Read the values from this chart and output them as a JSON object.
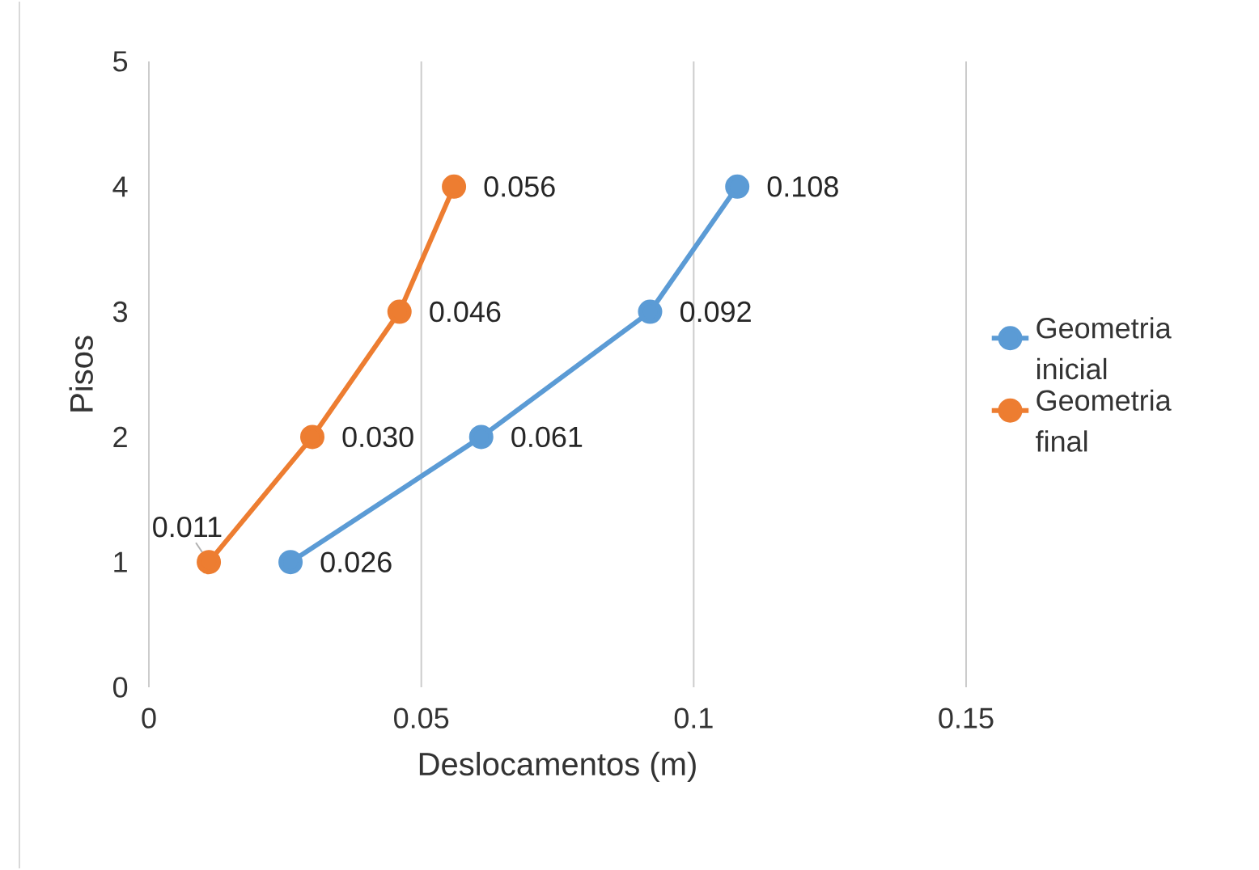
{
  "chart_data": {
    "type": "line",
    "orientation": "horizontal",
    "xlabel": "Deslocamentos (m)",
    "ylabel": "Pisos",
    "series": [
      {
        "name": "Geometria inicial",
        "color": "#5b9bd5",
        "x": [
          1,
          2,
          3,
          4
        ],
        "values": [
          0.026,
          0.061,
          0.092,
          0.108
        ],
        "value_labels": [
          "0.026",
          "0.061",
          "0.092",
          "0.108"
        ]
      },
      {
        "name": "Geometria final",
        "color": "#ed7d31",
        "x": [
          1,
          2,
          3,
          4
        ],
        "values": [
          0.011,
          0.03,
          0.046,
          0.056
        ],
        "value_labels": [
          "0.011",
          "0.030",
          "0.046",
          "0.056"
        ]
      }
    ],
    "xlim": [
      0,
      0.15
    ],
    "xticks": [
      0,
      0.05,
      0.1,
      0.15
    ],
    "ylim": [
      0,
      5
    ],
    "yticks": [
      0,
      1,
      2,
      3,
      4,
      5
    ],
    "grid": "x",
    "legend": "right",
    "marker": "circle"
  }
}
